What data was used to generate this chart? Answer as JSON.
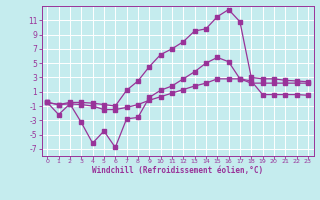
{
  "background_color": "#c5ecee",
  "grid_color": "#b0d8da",
  "line_color": "#993399",
  "xlabel": "Windchill (Refroidissement éolien,°C)",
  "ylim": [
    -8,
    13
  ],
  "xlim": [
    0,
    23
  ],
  "yticks": [
    -7,
    -5,
    -3,
    -1,
    1,
    3,
    5,
    7,
    9,
    11
  ],
  "xticks": [
    0,
    1,
    2,
    3,
    4,
    5,
    6,
    7,
    8,
    9,
    10,
    11,
    12,
    13,
    14,
    15,
    16,
    17,
    18,
    19,
    20,
    21,
    22,
    23
  ],
  "curve_lower_x": [
    0,
    1,
    2,
    3,
    4,
    5,
    6,
    7,
    8,
    9,
    10,
    11,
    12,
    13,
    14,
    15,
    16,
    17,
    18,
    19,
    20,
    21,
    22,
    23
  ],
  "curve_lower_y": [
    -0.5,
    -2.2,
    -0.7,
    -3.3,
    -6.2,
    -4.5,
    -6.8,
    -2.8,
    -2.6,
    0.2,
    1.2,
    1.8,
    2.8,
    3.8,
    5.0,
    5.8,
    5.2,
    2.8,
    2.2,
    2.2,
    2.2,
    2.2,
    2.2,
    2.2
  ],
  "curve_upper_x": [
    0,
    1,
    2,
    3,
    4,
    5,
    6,
    7,
    8,
    9,
    10,
    11,
    12,
    13,
    14,
    15,
    16,
    17,
    18,
    19,
    20,
    21,
    22,
    23
  ],
  "curve_upper_y": [
    -0.5,
    -0.8,
    -0.5,
    -0.5,
    -0.6,
    -0.8,
    -1.0,
    1.2,
    2.5,
    4.5,
    6.2,
    7.0,
    8.0,
    9.5,
    9.8,
    11.5,
    12.5,
    10.8,
    3.0,
    2.8,
    2.8,
    2.6,
    2.5,
    2.4
  ],
  "curve_mid_x": [
    0,
    1,
    2,
    3,
    4,
    5,
    6,
    7,
    8,
    9,
    10,
    11,
    12,
    13,
    14,
    15,
    16,
    17,
    18,
    19,
    20,
    21,
    22,
    23
  ],
  "curve_mid_y": [
    -0.5,
    -0.8,
    -0.7,
    -0.8,
    -1.0,
    -1.5,
    -1.5,
    -1.2,
    -0.8,
    -0.2,
    0.3,
    0.8,
    1.3,
    1.8,
    2.2,
    2.8,
    2.8,
    2.8,
    2.5,
    0.6,
    0.6,
    0.6,
    0.6,
    0.5
  ]
}
